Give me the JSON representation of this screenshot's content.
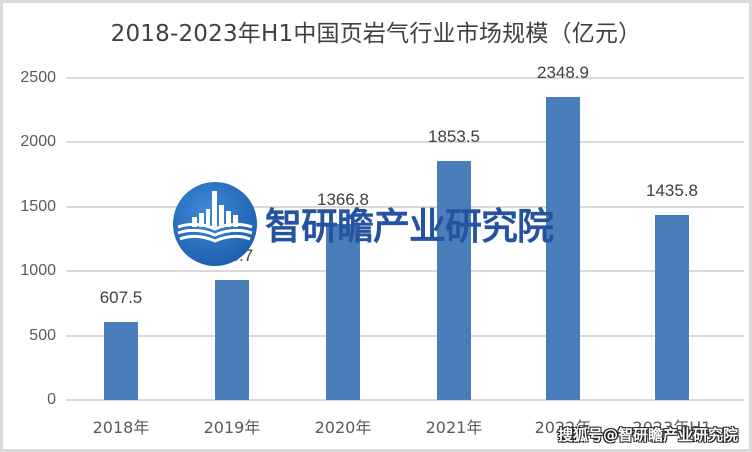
{
  "chart_data": {
    "type": "bar",
    "title": "2018-2023年H1中国页岩气行业市场规模（亿元）",
    "xlabel": "",
    "ylabel": "",
    "categories": [
      "2018年",
      "2019年",
      "2020年",
      "2021年",
      "2022年",
      "2023年H1"
    ],
    "values": [
      607.5,
      933.7,
      1366.8,
      1853.5,
      2348.9,
      1435.8
    ],
    "value_labels": [
      "607.5",
      "933.7",
      "1366.8",
      "1853.5",
      "2348.9",
      "1435.8"
    ],
    "ylim": [
      0,
      2500
    ],
    "yticks": [
      "0",
      "500",
      "1000",
      "1500",
      "2000",
      "2500"
    ],
    "grid": true,
    "legend": null,
    "bar_color": "#4a7ebb"
  },
  "watermark": {
    "logo_text": "智研瞻产业研究院",
    "source_text": "搜狐号@智研瞻产业研究院",
    "logo_color": "#2553a0"
  }
}
